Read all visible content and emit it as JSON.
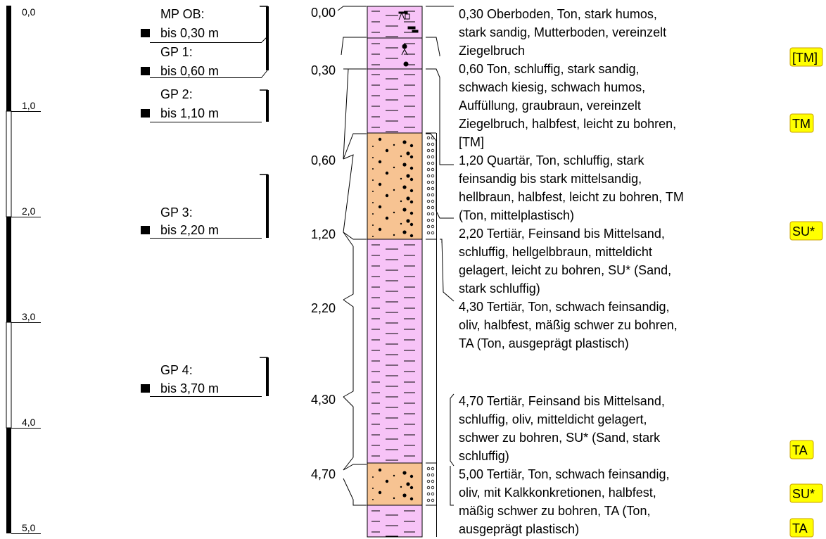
{
  "scale": {
    "labels": [
      "0,0",
      "1,0",
      "2,0",
      "3,0",
      "4,0",
      "5,0"
    ]
  },
  "samples": [
    {
      "name": "MP OB:",
      "depth": "bis 0,30 m"
    },
    {
      "name": "GP 1:",
      "depth": "bis 0,60 m"
    },
    {
      "name": "GP 2:",
      "depth": "bis 1,10 m"
    },
    {
      "name": "GP 3:",
      "depth": "bis 2,20 m"
    },
    {
      "name": "GP 4:",
      "depth": "bis 3,70 m"
    }
  ],
  "top_depths": [
    "0,00",
    "0,30",
    "0,60",
    "1,20",
    "2,20",
    "4,30",
    "4,70"
  ],
  "layers": [
    {
      "lines": [
        "0,30  Oberboden, Ton, stark humos,",
        "stark sandig, Mutterboden, vereinzelt",
        "Ziegelbruch"
      ]
    },
    {
      "lines": [
        "0,60  Ton, schluffig, stark sandig,",
        "schwach kiesig, schwach humos,",
        "Auffüllung, graubraun, vereinzelt",
        "Ziegelbruch, halbfest, leicht zu bohren,",
        "[TM]"
      ]
    },
    {
      "lines": [
        "1,20  Quartär, Ton, schluffig, stark",
        "feinsandig bis stark mittelsandig,",
        "hellbraun, halbfest, leicht zu bohren, TM",
        "(Ton, mittelplastisch)"
      ]
    },
    {
      "lines": [
        "2,20  Tertiär, Feinsand bis Mittelsand,",
        "schluffig, hellgelbbraun, mitteldicht",
        "gelagert, leicht zu bohren, SU* (Sand,",
        "stark schluffig)"
      ]
    },
    {
      "lines": [
        "4,30  Tertiär, Ton, schwach feinsandig,",
        "oliv, halbfest, mäßig schwer zu bohren,",
        "TA (Ton, ausgeprägt plastisch)"
      ]
    },
    {
      "lines": [
        "4,70  Tertiär, Feinsand bis Mittelsand,",
        "schluffig, oliv, mitteldicht gelagert,",
        "schwer zu bohren, SU* (Sand, stark",
        "schluffig)"
      ]
    },
    {
      "lines": [
        "5,00  Tertiär, Ton, schwach feinsandig,",
        "oliv, mit Kalkkonkretionen, halbfest,",
        "mäßig schwer zu bohren, TA (Ton,",
        "ausgeprägt plastisch)"
      ]
    }
  ],
  "badges": [
    "[TM]",
    "TM",
    "SU*",
    "TA",
    "SU*",
    "TA"
  ],
  "colors": {
    "clay": "#f7c3f7",
    "sand": "#f7c392",
    "badge": "#ffff00"
  }
}
